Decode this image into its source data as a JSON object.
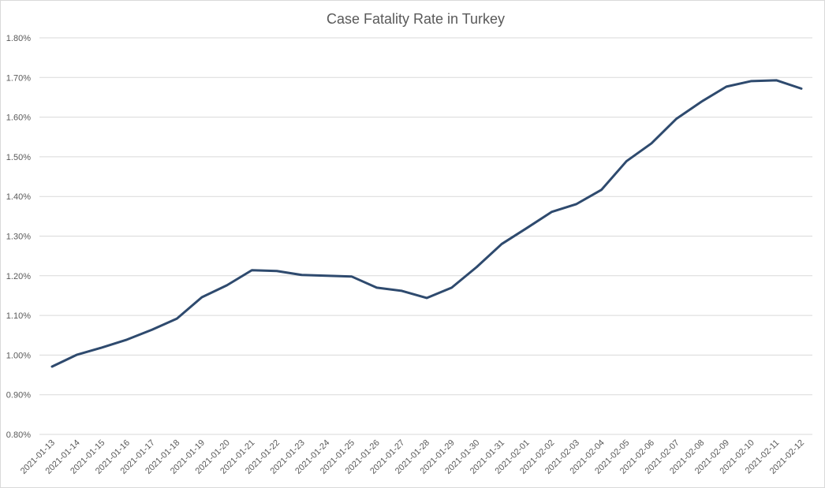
{
  "chart_data": {
    "type": "line",
    "title": "Case Fatality Rate in Turkey",
    "xlabel": "",
    "ylabel": "",
    "ylim": [
      0.008,
      0.018
    ],
    "y_tick_values": [
      0.008,
      0.009,
      0.01,
      0.011,
      0.012,
      0.013,
      0.014,
      0.015,
      0.016,
      0.017,
      0.018
    ],
    "y_tick_labels": [
      "0.80%",
      "0.90%",
      "1.00%",
      "1.10%",
      "1.20%",
      "1.30%",
      "1.40%",
      "1.50%",
      "1.60%",
      "1.70%",
      "1.80%"
    ],
    "grid": true,
    "legend": "none",
    "series_color": "#2e4a6e",
    "categories": [
      "2021-01-13",
      "2021-01-14",
      "2021-01-15",
      "2021-01-16",
      "2021-01-17",
      "2021-01-18",
      "2021-01-19",
      "2021-01-20",
      "2021-01-21",
      "2021-01-22",
      "2021-01-23",
      "2021-01-24",
      "2021-01-25",
      "2021-01-26",
      "2021-01-27",
      "2021-01-28",
      "2021-01-29",
      "2021-01-30",
      "2021-01-31",
      "2021-02-01",
      "2021-02-02",
      "2021-02-03",
      "2021-02-04",
      "2021-02-05",
      "2021-02-06",
      "2021-02-07",
      "2021-02-08",
      "2021-02-09",
      "2021-02-10",
      "2021-02-11",
      "2021-02-12"
    ],
    "series": [
      {
        "values": [
          0.00971,
          0.01001,
          0.01019,
          0.01039,
          0.01064,
          0.01092,
          0.01146,
          0.01176,
          0.01214,
          0.01212,
          0.01202,
          0.012,
          0.01198,
          0.0117,
          0.01162,
          0.01144,
          0.0117,
          0.01222,
          0.0128,
          0.0132,
          0.01361,
          0.01381,
          0.01417,
          0.01489,
          0.01534,
          0.01596,
          0.01639,
          0.01677,
          0.01691,
          0.01693,
          0.01672
        ]
      }
    ]
  }
}
